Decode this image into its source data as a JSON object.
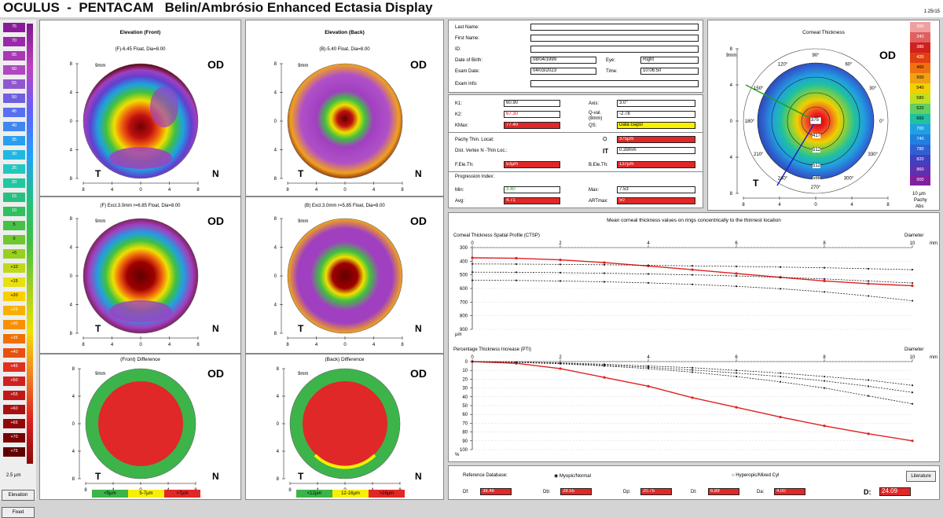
{
  "header": {
    "title": "OCULUS  -  PENTACAM   Belin/Ambrósio Enhanced Ectasia Display",
    "version": "1.25r15"
  },
  "elevation_scale": {
    "values": [
      "75",
      "70",
      "65",
      "60",
      "55",
      "50",
      "45",
      "40",
      "35",
      "30",
      "25",
      "20",
      "15",
      "10",
      "5",
      "0",
      "+5",
      "+10",
      "+15",
      "+20",
      "+25",
      "+30",
      "+35",
      "+40",
      "+45",
      "+50",
      "+55",
      "+60",
      "+65",
      "+70",
      "+75"
    ],
    "step": "2.5 µm",
    "mode": "Elevation",
    "fixed": "Fixed"
  },
  "maps": {
    "front": {
      "title": "Elevation (Front)",
      "sub": "(F)-6.45 Float, Dia=8.00",
      "eye": "OD",
      "t": "T",
      "n": "N",
      "zoom": "9mm"
    },
    "back": {
      "title": "Elevation (Back)",
      "sub": "(B)-5.40 Float, Dia=8.00",
      "eye": "OD",
      "t": "T",
      "n": "N",
      "zoom": "9mm"
    },
    "front_excl": {
      "sub": "(F) Excl.3.0mm r=6.85 Float, Dia=8.00",
      "eye": "OD",
      "t": "T",
      "n": "N",
      "zoom": "9mm"
    },
    "back_excl": {
      "sub": "(B) Excl.3.0mm r=5.85 Float, Dia=8.00",
      "eye": "OD",
      "t": "T",
      "n": "N",
      "zoom": "9mm"
    },
    "front_diff": {
      "title": "(Front) Difference",
      "eye": "OD",
      "t": "T",
      "n": "N",
      "zoom": "9mm",
      "legend": [
        "<5µm",
        "5-7µm",
        ">7µm"
      ]
    },
    "back_diff": {
      "title": "(Back) Difference",
      "eye": "OD",
      "t": "T",
      "n": "N",
      "zoom": "9mm",
      "legend": [
        "<12µm",
        "12-16µm",
        ">16µm"
      ]
    },
    "axis_ticks": [
      "8",
      "4",
      "0",
      "4",
      "8"
    ]
  },
  "patient": {
    "last_name_label": "Last Name:",
    "first_name_label": "First Name:",
    "id_label": "ID:",
    "dob_label": "Date of Birth:",
    "dob": "08/04/1999",
    "eye_label": "Eye:",
    "eye": "Right",
    "exam_date_label": "Exam Date:",
    "exam_date": "04/03/2023",
    "time_label": "Time:",
    "time": "10:06:50",
    "exam_info_label": "Exam Info:"
  },
  "keratometry": {
    "k1_label": "K1:",
    "k1": "60.90",
    "k2_label": "K2:",
    "k2": "67.30",
    "kmax_label": "KMax:",
    "kmax": "77.40",
    "axis_label": "Axis:",
    "axis": "3.0°",
    "qval_label": "Q-val. (8mm)",
    "qval": "-2.78",
    "qs_label": "QS:",
    "qs": "Data Gaps!",
    "pachy_label": "Pachy Thin. Locat:",
    "pachy_symbol": "O",
    "pachy": "375µm",
    "dist_label": "Dist. Vertex N -Thin Loc.:",
    "dist_symbol": "IT",
    "dist": "0.39mm",
    "fele_label": "F.Ele.Th:",
    "fele": "53µm",
    "bele_label": "B.Ele.Th:",
    "bele": "137µm",
    "prog_label": "Progression Index:",
    "min_label": "Min:",
    "min": "3.40",
    "max_label": "Max:",
    "max": "7.53",
    "avg_label": "Avg:",
    "avg": "4.71",
    "artmax_label": "ARTmax:",
    "artmax": "50"
  },
  "thickness_map": {
    "title": "Corneal Thickness",
    "eye": "OD",
    "t": "T",
    "zoom": "9mm",
    "center": "375",
    "rings": [
      "417",
      "512",
      "512",
      "588"
    ],
    "scale": [
      "300",
      "340",
      "380",
      "420",
      "460",
      "500",
      "540",
      "580",
      "620",
      "660",
      "700",
      "740",
      "780",
      "820",
      "860",
      "900"
    ],
    "step": "10 µm",
    "mode": "Pachy",
    "abs": "Abs",
    "angles": [
      "90°",
      "60°",
      "30°",
      "0°",
      "330°",
      "300°",
      "270°",
      "240°",
      "210°",
      "180°",
      "150°",
      "120°"
    ]
  },
  "mean_title": "Mean corneal thickness values on rings concentrically to the thinnest location",
  "ctsp": {
    "title": "Corneal Thickness Spatial Profile (CTSP)",
    "diameter_label": "Diameter",
    "unit": "µm",
    "x_unit": "mm",
    "x_ticks": [
      "0",
      "2",
      "4",
      "6",
      "8",
      "10"
    ],
    "y_ticks": [
      "300",
      "400",
      "500",
      "600",
      "700",
      "800",
      "900"
    ]
  },
  "pti": {
    "title": "Percentage Thickness Increase (PTI)",
    "diameter_label": "Diameter",
    "unit": "%",
    "x_unit": "mm",
    "x_ticks": [
      "0",
      "2",
      "4",
      "6",
      "8",
      "10"
    ],
    "y_ticks": [
      "0",
      "10",
      "20",
      "30",
      "40",
      "50",
      "60",
      "70",
      "80",
      "90",
      "100"
    ]
  },
  "chart_data": [
    {
      "type": "line",
      "title": "Corneal Thickness Spatial Profile (CTSP)",
      "xlabel": "Diameter mm",
      "ylabel": "µm",
      "xlim": [
        0,
        10
      ],
      "ylim": [
        900,
        300
      ],
      "x": [
        0,
        1,
        2,
        3,
        4,
        5,
        6,
        7,
        8,
        9,
        10
      ],
      "series": [
        {
          "values": [
            375,
            378,
            390,
            410,
            435,
            462,
            490,
            518,
            545,
            565,
            580
          ],
          "color": "#e02020"
        },
        {
          "values": [
            420,
            421,
            423,
            426,
            430,
            434,
            438,
            443,
            448,
            455,
            462
          ],
          "color": "#222"
        },
        {
          "values": [
            480,
            481,
            484,
            488,
            493,
            500,
            508,
            518,
            530,
            545,
            560
          ],
          "color": "#222"
        },
        {
          "values": [
            540,
            541,
            545,
            551,
            559,
            570,
            584,
            602,
            625,
            655,
            690
          ],
          "color": "#222"
        }
      ]
    },
    {
      "type": "line",
      "title": "Percentage Thickness Increase (PTI)",
      "xlabel": "Diameter mm",
      "ylabel": "%",
      "xlim": [
        0,
        10
      ],
      "ylim": [
        0,
        100
      ],
      "x": [
        0,
        1,
        2,
        3,
        4,
        5,
        6,
        7,
        8,
        9,
        10
      ],
      "series": [
        {
          "values": [
            0,
            2,
            8,
            18,
            28,
            41,
            52,
            63,
            73,
            82,
            90
          ],
          "color": "#e02020"
        },
        {
          "values": [
            0,
            0.5,
            1.5,
            3,
            5,
            7,
            10,
            13,
            17,
            21,
            27
          ],
          "color": "#222"
        },
        {
          "values": [
            0,
            0.7,
            2,
            4,
            6.5,
            9.5,
            13,
            17,
            22,
            28,
            35
          ],
          "color": "#222"
        },
        {
          "values": [
            0,
            1,
            2.5,
            5,
            8,
            12,
            17,
            23,
            30,
            39,
            48
          ],
          "color": "#222"
        }
      ]
    }
  ],
  "bottom": {
    "ref_label": "Reference Database:",
    "myopic": "Myopic/Normal",
    "hyperopic": "Hyperopic/Mixed Cyl",
    "literature": "Literature",
    "df_label": "Df:",
    "df": "38.46",
    "db_label": "Db:",
    "db": "28.55",
    "dp_label": "Dp:",
    "dp": "20.75",
    "dt_label": "Dt:",
    "dt": "6.89",
    "da_label": "Da:",
    "da": "4.00",
    "d_label": "D:",
    "d": "24.09"
  },
  "colors": {
    "red": "#e02828",
    "green": "#3cb44a",
    "yellow": "#f8f000",
    "purple": "#a040c0"
  }
}
